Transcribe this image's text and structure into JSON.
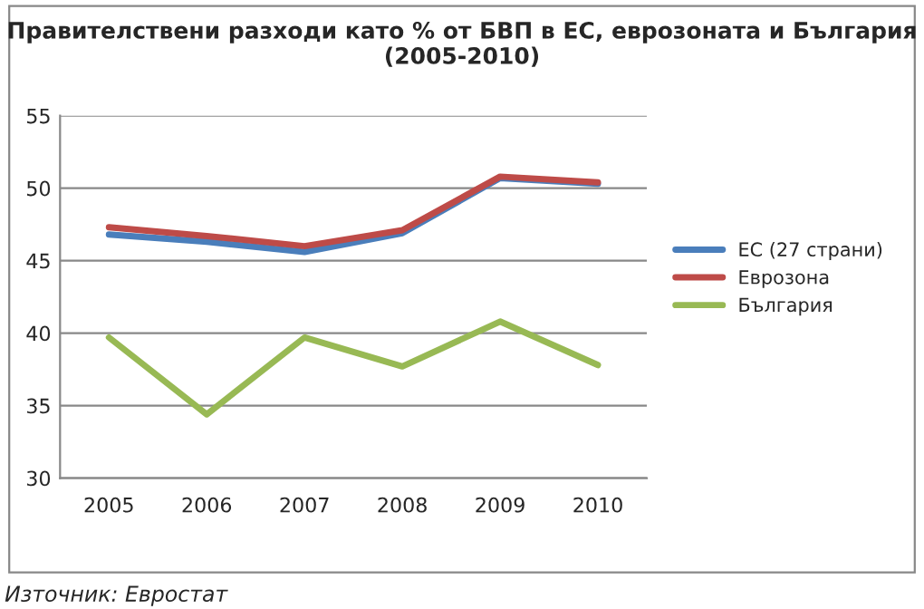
{
  "chart_data": {
    "type": "line",
    "title": "Правителствени разходи като % от БВП в ЕС, еврозоната и България (2005-2010)",
    "categories": [
      "2005",
      "2006",
      "2007",
      "2008",
      "2009",
      "2010"
    ],
    "series": [
      {
        "name": "ЕС (27 страни)",
        "color": "#4a7ebb",
        "values": [
          46.8,
          46.3,
          45.6,
          46.9,
          50.7,
          50.3
        ]
      },
      {
        "name": "Еврозона",
        "color": "#be4b48",
        "values": [
          47.3,
          46.7,
          46.0,
          47.1,
          50.8,
          50.4
        ]
      },
      {
        "name": "България",
        "color": "#98b954",
        "values": [
          39.7,
          34.4,
          39.7,
          37.7,
          40.8,
          37.8
        ]
      }
    ],
    "ylim": [
      30,
      55
    ],
    "yticks": [
      30,
      35,
      40,
      45,
      50,
      55
    ],
    "grid": "y",
    "legend": "right",
    "marker": "none",
    "annotations": [
      "Източник: Евростат"
    ]
  }
}
